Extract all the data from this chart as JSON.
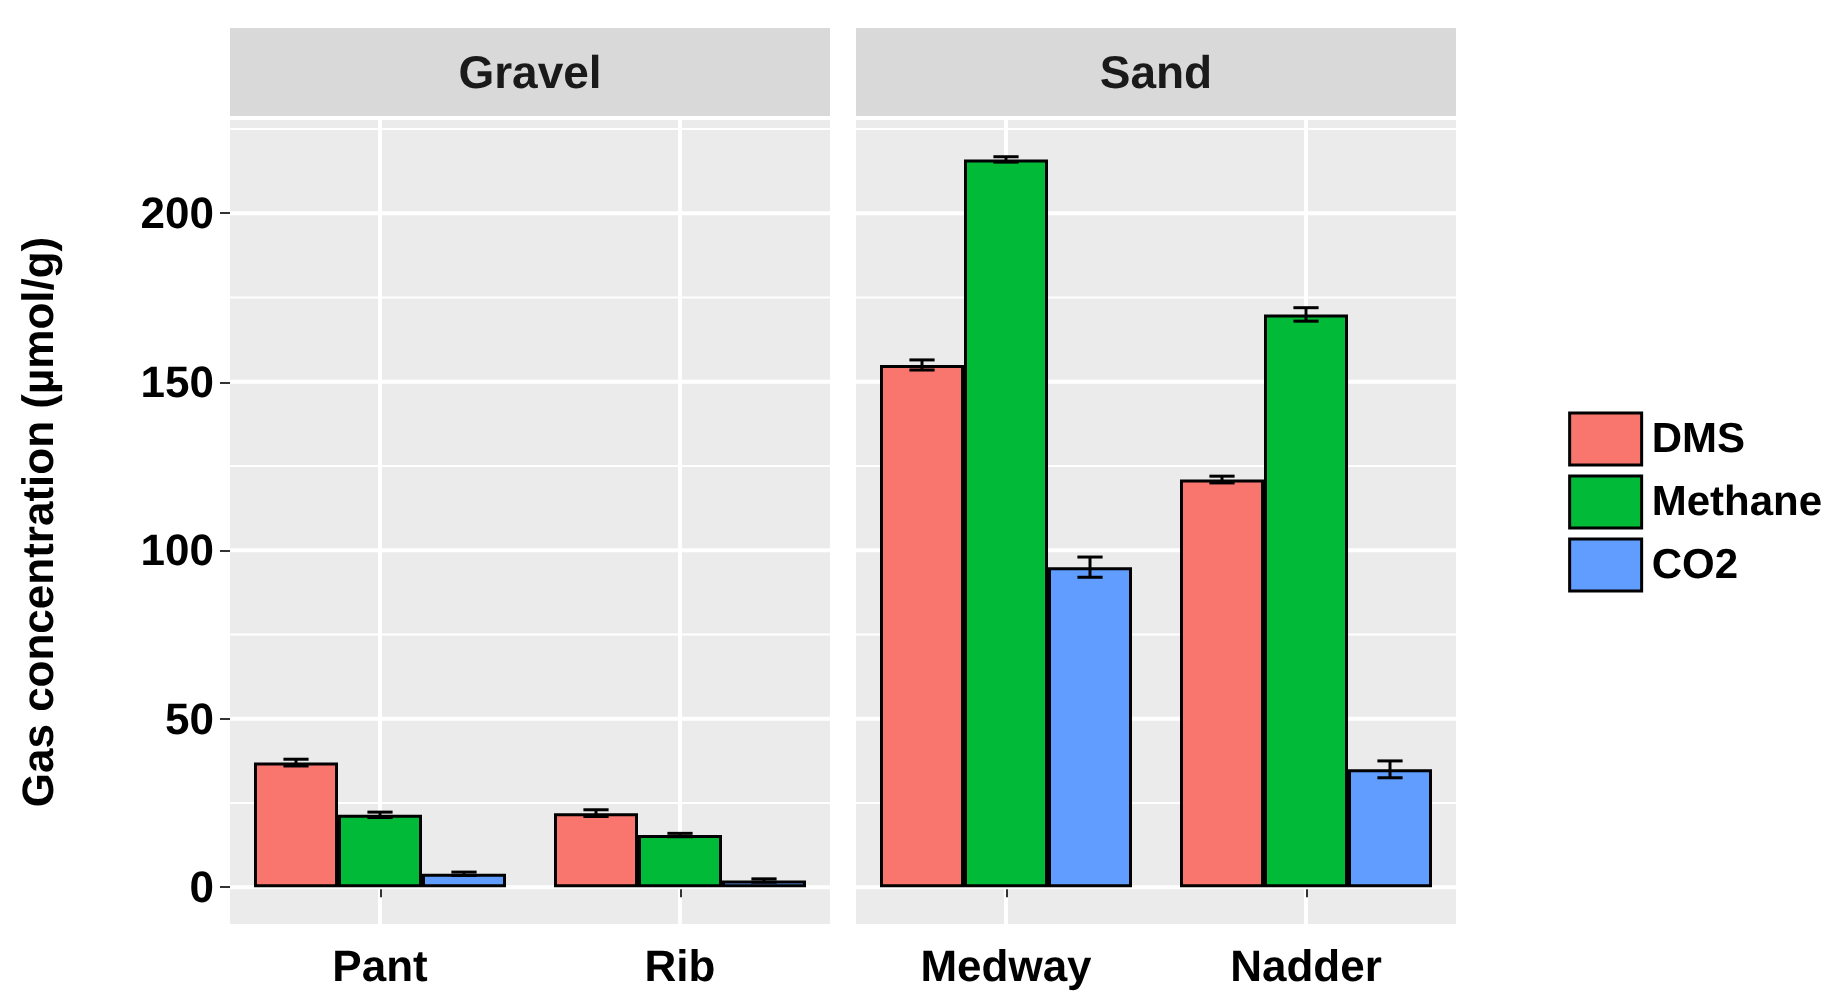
{
  "chart_data": [
    {
      "type": "bar",
      "title": "Gravel",
      "ylabel": "Gas concentration (µmol/g)",
      "categories": [
        "Pant",
        "Rib"
      ],
      "series": [
        {
          "color": "#f8766d",
          "values": [
            37,
            22
          ],
          "errors": [
            1,
            1
          ]
        },
        {
          "color": "#00ba38",
          "values": [
            21.5,
            15.5
          ],
          "errors": [
            0.8,
            0.5
          ]
        },
        {
          "color": "#619cff",
          "values": [
            4,
            2
          ],
          "errors": [
            0.5,
            0.5
          ]
        }
      ],
      "ylim": [
        -10.9,
        227.7
      ],
      "yticks": [
        0,
        50,
        100,
        150,
        200
      ],
      "grid": true,
      "legend": false
    },
    {
      "type": "bar",
      "title": "Sand",
      "categories": [
        "Medway",
        "Nadder"
      ],
      "series": [
        {
          "name": "DMS",
          "color": "#f8766d",
          "values": [
            155,
            121
          ],
          "errors": [
            1.5,
            1
          ]
        },
        {
          "name": "Methane",
          "color": "#00ba38",
          "values": [
            216,
            170
          ],
          "errors": [
            0.8,
            2
          ]
        },
        {
          "name": "CO2",
          "color": "#619cff",
          "values": [
            95,
            35
          ],
          "errors": [
            3,
            2.5
          ]
        }
      ],
      "ylim": [
        -10.9,
        227.7
      ],
      "yticks": [
        0,
        50,
        100,
        150,
        200
      ],
      "grid": true,
      "legend": "right",
      "tick_labels": "x"
    }
  ]
}
